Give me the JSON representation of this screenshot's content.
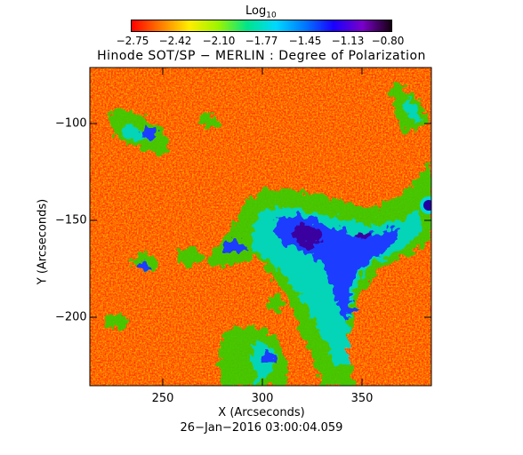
{
  "colorbar": {
    "label": "Log",
    "label_sub": "10",
    "ticks": [
      "−2.75",
      "−2.42",
      "−2.10",
      "−1.77",
      "−1.45",
      "−1.13",
      "−0.80"
    ],
    "colors": [
      "#ff0000",
      "#ff7a00",
      "#ffee00",
      "#9cf500",
      "#00e58a",
      "#00d8ff",
      "#0078ff",
      "#1a00ff",
      "#7a00c8",
      "#140010"
    ]
  },
  "title": "Hinode SOT/SP − MERLIN : Degree of Polarization",
  "x_axis": {
    "label": "X (Arcseconds)",
    "ticks": [
      "250",
      "300",
      "350"
    ]
  },
  "y_axis": {
    "label": "Y (Arcseconds)",
    "ticks": [
      "−100",
      "−150",
      "−200"
    ]
  },
  "date": "26−Jan−2016 03:00:04.059",
  "colors": {
    "background_red": "#ff2200",
    "orange": "#ff8a00",
    "yellow": "#ffe600",
    "green": "#3fd400",
    "cyan": "#00d8d8",
    "blue": "#1a3cff",
    "purple": "#3a00a0"
  }
}
